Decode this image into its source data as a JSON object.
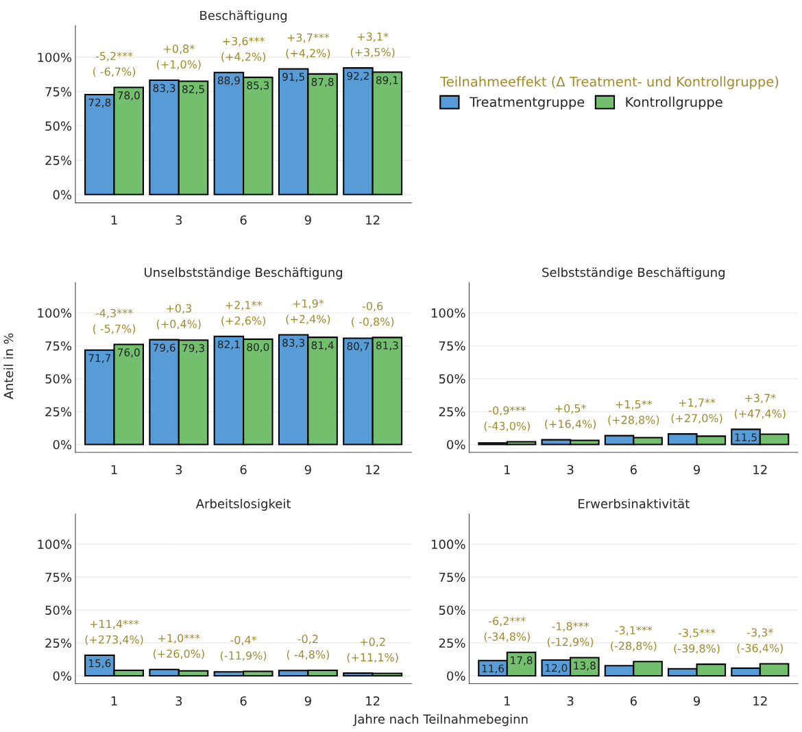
{
  "chart_data": [
    {
      "type": "bar",
      "title": "Beschäftigung",
      "categories": [
        "1",
        "3",
        "6",
        "9",
        "12"
      ],
      "ylim": [
        -6,
        123
      ],
      "yticks": [
        {
          "value": 0,
          "label": "0%"
        },
        {
          "value": 25,
          "label": "25%"
        },
        {
          "value": 50,
          "label": "50%"
        },
        {
          "value": 75,
          "label": "75%"
        },
        {
          "value": 100,
          "label": "100%"
        }
      ],
      "grid": "y",
      "legend": "right",
      "legend_title": "Teilnahmeeffekt (Δ Treatment- und Kontrollgruppe)",
      "series": [
        {
          "name": "Treatmentgruppe",
          "color": "#579cd6",
          "values": [
            72.8,
            83.3,
            88.9,
            91.5,
            92.2
          ],
          "value_labels": [
            "72,8",
            "83,3",
            "88,9",
            "91,5",
            "92,2"
          ]
        },
        {
          "name": "Kontrollgruppe",
          "color": "#72bf6e",
          "values": [
            78.0,
            82.5,
            85.3,
            87.8,
            89.1
          ],
          "value_labels": [
            "78,0",
            "82,5",
            "85,3",
            "87,8",
            "89,1"
          ]
        }
      ],
      "annotations": [
        {
          "text": "-5,2***\n( -6,7%)",
          "x": "1",
          "y": 78.0
        },
        {
          "text": "+0,8*\n(+1,0%)",
          "x": "3",
          "y": 83.3
        },
        {
          "text": "+3,6***\n(+4,2%)",
          "x": "6",
          "y": 88.9
        },
        {
          "text": "+3,7***\n(+4,2%)",
          "x": "9",
          "y": 91.5
        },
        {
          "text": "+3,1*\n(+3,5%)",
          "x": "12",
          "y": 92.2
        }
      ]
    },
    {
      "type": "bar",
      "title": "Unselbstständige Beschäftigung",
      "ylabel": "Anteil in %",
      "categories": [
        "1",
        "3",
        "6",
        "9",
        "12"
      ],
      "ylim": [
        -6,
        123
      ],
      "yticks": [
        {
          "value": 0,
          "label": "0%"
        },
        {
          "value": 25,
          "label": "25%"
        },
        {
          "value": 50,
          "label": "50%"
        },
        {
          "value": 75,
          "label": "75%"
        },
        {
          "value": 100,
          "label": "100%"
        }
      ],
      "grid": "y",
      "series": [
        {
          "color": "#579cd6",
          "values": [
            71.7,
            79.6,
            82.1,
            83.3,
            80.7
          ],
          "value_labels": [
            "71,7",
            "79,6",
            "82,1",
            "83,3",
            "80,7"
          ]
        },
        {
          "color": "#72bf6e",
          "values": [
            76.0,
            79.3,
            80.0,
            81.4,
            81.3
          ],
          "value_labels": [
            "76,0",
            "79,3",
            "80,0",
            "81,4",
            "81,3"
          ]
        }
      ],
      "annotations": [
        {
          "text": "-4,3***\n( -5,7%)",
          "x": "1",
          "y": 76.0
        },
        {
          "text": "+0,3\n(+0,4%)",
          "x": "3",
          "y": 79.6
        },
        {
          "text": "+2,1**\n(+2,6%)",
          "x": "6",
          "y": 82.1
        },
        {
          "text": "+1,9*\n(+2,4%)",
          "x": "9",
          "y": 83.3
        },
        {
          "text": "-0,6\n( -0,8%)",
          "x": "12",
          "y": 81.3
        }
      ]
    },
    {
      "type": "bar",
      "title": "Selbstständige Beschäftigung",
      "categories": [
        "1",
        "3",
        "6",
        "9",
        "12"
      ],
      "ylim": [
        -6,
        123
      ],
      "yticks": [
        {
          "value": 0,
          "label": "0%"
        },
        {
          "value": 25,
          "label": "25%"
        },
        {
          "value": 50,
          "label": "50%"
        },
        {
          "value": 75,
          "label": "75%"
        },
        {
          "value": 100,
          "label": "100%"
        }
      ],
      "grid": "y",
      "series": [
        {
          "color": "#579cd6",
          "values": [
            1.2,
            3.6,
            6.7,
            8.0,
            11.5
          ],
          "value_labels": [
            null,
            null,
            null,
            null,
            "11,5"
          ]
        },
        {
          "color": "#72bf6e",
          "values": [
            2.1,
            3.1,
            5.2,
            6.3,
            7.8
          ],
          "value_labels": [
            null,
            null,
            null,
            null,
            null
          ]
        }
      ],
      "annotations": [
        {
          "text": "-0,9***\n(-43,0%)",
          "x": "1",
          "y": 2.1
        },
        {
          "text": "+0,5*\n(+16,4%)",
          "x": "3",
          "y": 3.6
        },
        {
          "text": "+1,5**\n(+28,8%)",
          "x": "6",
          "y": 6.7
        },
        {
          "text": "+1,7**\n(+27,0%)",
          "x": "9",
          "y": 8.0
        },
        {
          "text": "+3,7*\n(+47,4%)",
          "x": "12",
          "y": 11.5
        }
      ]
    },
    {
      "type": "bar",
      "title": "Arbeitslosigkeit",
      "xlabel": "Jahre nach Teilnahmebeginn",
      "categories": [
        "1",
        "3",
        "6",
        "9",
        "12"
      ],
      "ylim": [
        -6,
        123
      ],
      "yticks": [
        {
          "value": 0,
          "label": "0%"
        },
        {
          "value": 25,
          "label": "25%"
        },
        {
          "value": 50,
          "label": "50%"
        },
        {
          "value": 75,
          "label": "75%"
        },
        {
          "value": 100,
          "label": "100%"
        }
      ],
      "grid": "y",
      "series": [
        {
          "color": "#579cd6",
          "values": [
            15.6,
            4.8,
            3.0,
            4.0,
            2.0
          ],
          "value_labels": [
            "15,6",
            null,
            null,
            null,
            null
          ]
        },
        {
          "color": "#72bf6e",
          "values": [
            4.2,
            3.8,
            3.4,
            4.2,
            1.8
          ],
          "value_labels": [
            null,
            null,
            null,
            null,
            null
          ]
        }
      ],
      "annotations": [
        {
          "text": "+11,4***\n(+273,4%)",
          "x": "1",
          "y": 15.6
        },
        {
          "text": "+1,0***\n(+26,0%)",
          "x": "3",
          "y": 4.8
        },
        {
          "text": "-0,4*\n(-11,9%)",
          "x": "6",
          "y": 3.4
        },
        {
          "text": "-0,2\n( -4,8%)",
          "x": "9",
          "y": 4.2
        },
        {
          "text": "+0,2\n(+11,1%)",
          "x": "12",
          "y": 2.0
        }
      ]
    },
    {
      "type": "bar",
      "title": "Erwerbsinaktivität",
      "categories": [
        "1",
        "3",
        "6",
        "9",
        "12"
      ],
      "ylim": [
        -6,
        123
      ],
      "yticks": [
        {
          "value": 0,
          "label": "0%"
        },
        {
          "value": 25,
          "label": "25%"
        },
        {
          "value": 50,
          "label": "50%"
        },
        {
          "value": 75,
          "label": "75%"
        },
        {
          "value": 100,
          "label": "100%"
        }
      ],
      "grid": "y",
      "series": [
        {
          "color": "#579cd6",
          "values": [
            11.6,
            12.0,
            7.7,
            5.3,
            5.8
          ],
          "value_labels": [
            "11,6",
            "12,0",
            null,
            null,
            null
          ]
        },
        {
          "color": "#72bf6e",
          "values": [
            17.8,
            13.8,
            10.8,
            8.8,
            9.1
          ],
          "value_labels": [
            "17,8",
            "13,8",
            null,
            null,
            null
          ]
        }
      ],
      "annotations": [
        {
          "text": "-6,2***\n(-34,8%)",
          "x": "1",
          "y": 17.8
        },
        {
          "text": "-1,8***\n(-12,9%)",
          "x": "3",
          "y": 13.8
        },
        {
          "text": "-3,1***\n(-28,8%)",
          "x": "6",
          "y": 10.8
        },
        {
          "text": "-3,5***\n(-39,8%)",
          "x": "9",
          "y": 8.8
        },
        {
          "text": "-3,3*\n(-36,4%)",
          "x": "12",
          "y": 9.1
        }
      ]
    }
  ]
}
